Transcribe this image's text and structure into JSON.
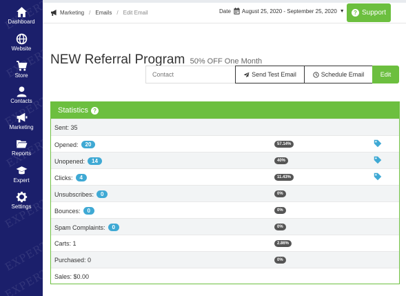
{
  "sidebar": {
    "watermark": "EXPERT",
    "items": [
      {
        "label": "Dashboard",
        "icon": "home-icon"
      },
      {
        "label": "Website",
        "icon": "globe-icon"
      },
      {
        "label": "Store",
        "icon": "cart-icon"
      },
      {
        "label": "Contacts",
        "icon": "user-icon"
      },
      {
        "label": "Marketing",
        "icon": "megaphone-icon"
      },
      {
        "label": "Reports",
        "icon": "folder-icon"
      },
      {
        "label": "Expert",
        "icon": "graduation-cap-icon"
      },
      {
        "label": "Settings",
        "icon": "gear-icon"
      }
    ]
  },
  "header": {
    "breadcrumbs": [
      "Marketing",
      "Emails",
      "Edit Email"
    ],
    "date_label": "Date",
    "date_range": "August 25, 2020 - September 25, 2020",
    "support_label": "Support"
  },
  "email": {
    "title": "NEW Referral Program",
    "subtitle": "50% OFF One Month"
  },
  "actions": {
    "contact_placeholder": "Contact",
    "send_test_label": "Send Test Email",
    "schedule_label": "Schedule Email",
    "edit_label": "Edit"
  },
  "stats": {
    "title": "Statistics",
    "rows": [
      {
        "label": "Sent: 35",
        "badge": null,
        "pct": null,
        "tag": false
      },
      {
        "label": "Opened:",
        "badge": "20",
        "pct": "57.14%",
        "tag": true
      },
      {
        "label": "Unopened:",
        "badge": "14",
        "pct": "40%",
        "tag": true
      },
      {
        "label": "Clicks:",
        "badge": "4",
        "pct": "11.43%",
        "tag": true
      },
      {
        "label": "Unsubscribes:",
        "badge": "0",
        "pct": "0%",
        "tag": false
      },
      {
        "label": "Bounces:",
        "badge": "0",
        "pct": "0%",
        "tag": false
      },
      {
        "label": "Spam Complaints:",
        "badge": "0",
        "pct": "0%",
        "tag": false
      },
      {
        "label": "Carts: 1",
        "badge": null,
        "pct": "2.86%",
        "tag": false
      },
      {
        "label": "Purchased: 0",
        "badge": null,
        "pct": "0%",
        "tag": false
      },
      {
        "label": "Sales: $0.00",
        "badge": null,
        "pct": null,
        "tag": false
      }
    ]
  },
  "colors": {
    "sidebar": "#1b1f6b",
    "accent_green": "#6cbf3f",
    "badge_blue": "#3fa9d4",
    "pct_gray": "#555555"
  }
}
